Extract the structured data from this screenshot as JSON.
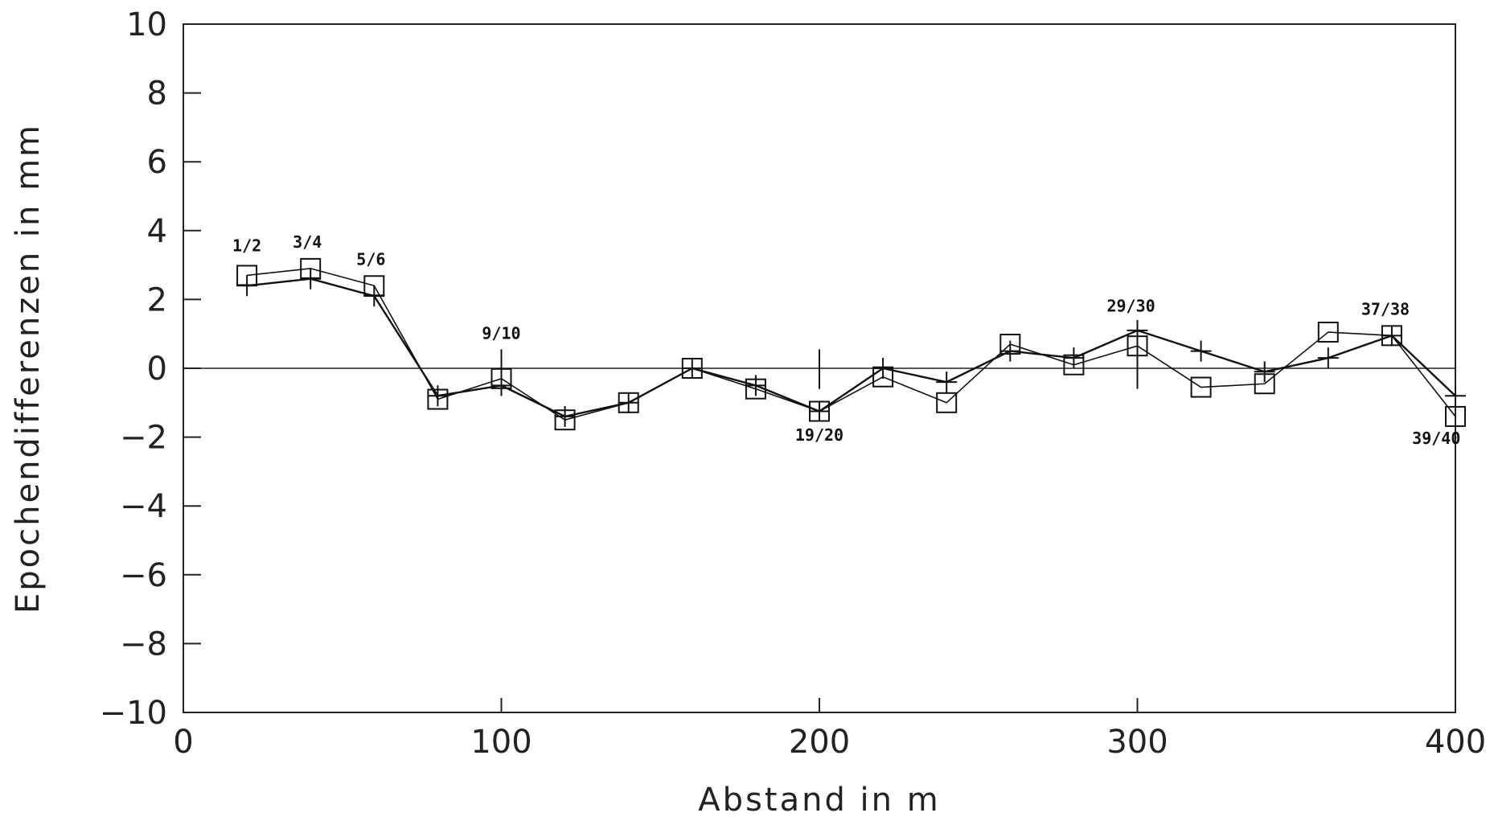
{
  "chart_data": {
    "type": "line",
    "xlabel": "Abstand in m",
    "ylabel": "Epochendifferenzen in mm",
    "xlim": [
      0,
      400
    ],
    "ylim": [
      -10,
      10
    ],
    "x_ticks": [
      {
        "value": 0,
        "label": "0"
      },
      {
        "value": 100,
        "label": "100"
      },
      {
        "value": 200,
        "label": "200"
      },
      {
        "value": 300,
        "label": "300"
      },
      {
        "value": 400,
        "label": "400"
      }
    ],
    "y_ticks": [
      {
        "value": 10,
        "label": "10"
      },
      {
        "value": 8,
        "label": "8"
      },
      {
        "value": 6,
        "label": "6"
      },
      {
        "value": 4,
        "label": "4"
      },
      {
        "value": 2,
        "label": "2"
      },
      {
        "value": 0,
        "label": "0"
      },
      {
        "value": -2,
        "label": "−2"
      },
      {
        "value": -4,
        "label": "−4"
      },
      {
        "value": -6,
        "label": "−6"
      },
      {
        "value": -8,
        "label": "−8"
      },
      {
        "value": -10,
        "label": "−10"
      }
    ],
    "grid": false,
    "reference_line_y": 0,
    "x": [
      20,
      40,
      60,
      80,
      100,
      120,
      140,
      160,
      180,
      200,
      220,
      240,
      260,
      280,
      300,
      320,
      340,
      360,
      380,
      400
    ],
    "series": [
      {
        "marker": "square",
        "values": [
          2.7,
          2.9,
          2.4,
          -0.9,
          -0.3,
          -1.5,
          -1.0,
          0.0,
          -0.6,
          -1.25,
          -0.25,
          -1.0,
          0.7,
          0.1,
          0.65,
          -0.55,
          -0.45,
          1.05,
          0.95,
          -1.4
        ]
      },
      {
        "marker": "plus",
        "values": [
          2.4,
          2.6,
          2.1,
          -0.8,
          -0.5,
          -1.4,
          -1.0,
          0.0,
          -0.5,
          -1.25,
          0.0,
          -0.4,
          0.5,
          0.3,
          1.1,
          0.5,
          -0.1,
          0.3,
          0.95,
          -0.8
        ]
      }
    ],
    "annotations": [
      {
        "text": "1/2",
        "x": 20,
        "y": 3.4
      },
      {
        "text": "3/4",
        "x": 39,
        "y": 3.5
      },
      {
        "text": "5/6",
        "x": 59,
        "y": 3.0
      },
      {
        "text": "9/10",
        "x": 100,
        "y": 0.85
      },
      {
        "text": "19/20",
        "x": 200,
        "y": -2.1
      },
      {
        "text": "29/30",
        "x": 298,
        "y": 1.65
      },
      {
        "text": "37/38",
        "x": 378,
        "y": 1.55
      },
      {
        "text": "39/40",
        "x": 394,
        "y": -2.2
      }
    ],
    "error_bars": [
      {
        "x": 100,
        "y_low": -0.6,
        "y_high": 0.55
      },
      {
        "x": 200,
        "y_low": -0.6,
        "y_high": 0.55
      },
      {
        "x": 300,
        "y_low": -0.6,
        "y_high": 1.2
      }
    ]
  }
}
